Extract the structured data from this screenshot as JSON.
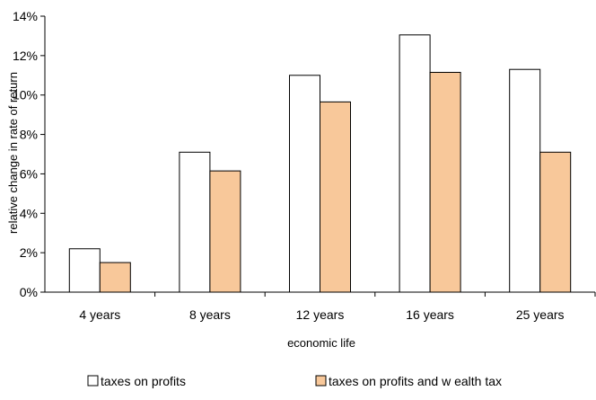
{
  "chart_data": {
    "type": "bar",
    "title": "",
    "xlabel": "economic life",
    "ylabel": "relative change in rate of return",
    "categories": [
      "4 years",
      "8 years",
      "12 years",
      "16 years",
      "25 years"
    ],
    "series": [
      {
        "name": "taxes on profits",
        "values": [
          2.2,
          7.1,
          11.0,
          13.05,
          11.3
        ],
        "color": "#ffffff"
      },
      {
        "name": "taxes on profits and w ealth tax",
        "values": [
          1.5,
          6.15,
          9.65,
          11.15,
          7.1
        ],
        "color": "#f8c89a"
      }
    ],
    "ylim": [
      0,
      14
    ],
    "ytick_step": 2,
    "ytick_format": "percent",
    "grid": false,
    "legend": "bottom",
    "bar_stroke": "#000000"
  }
}
